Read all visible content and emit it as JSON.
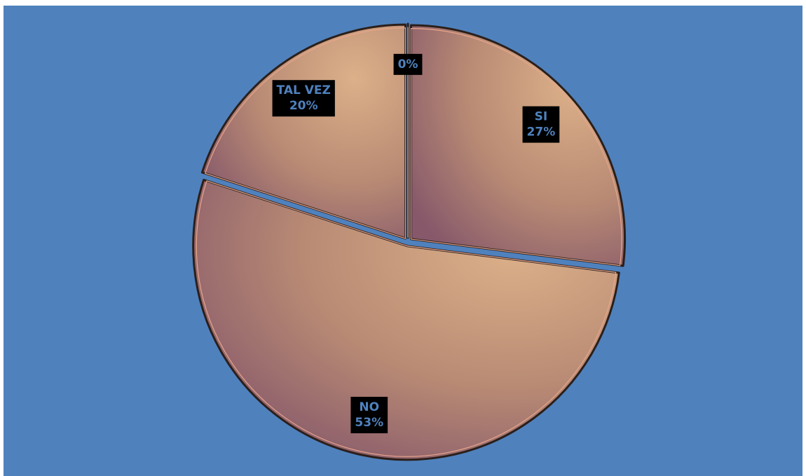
{
  "chart_data": {
    "type": "pie",
    "categories": [
      "SI",
      "NO",
      "TAL VEZ",
      null
    ],
    "values": [
      27,
      53,
      20,
      0
    ],
    "value_labels": [
      "27%",
      "53%",
      "20%",
      "0%"
    ]
  }
}
